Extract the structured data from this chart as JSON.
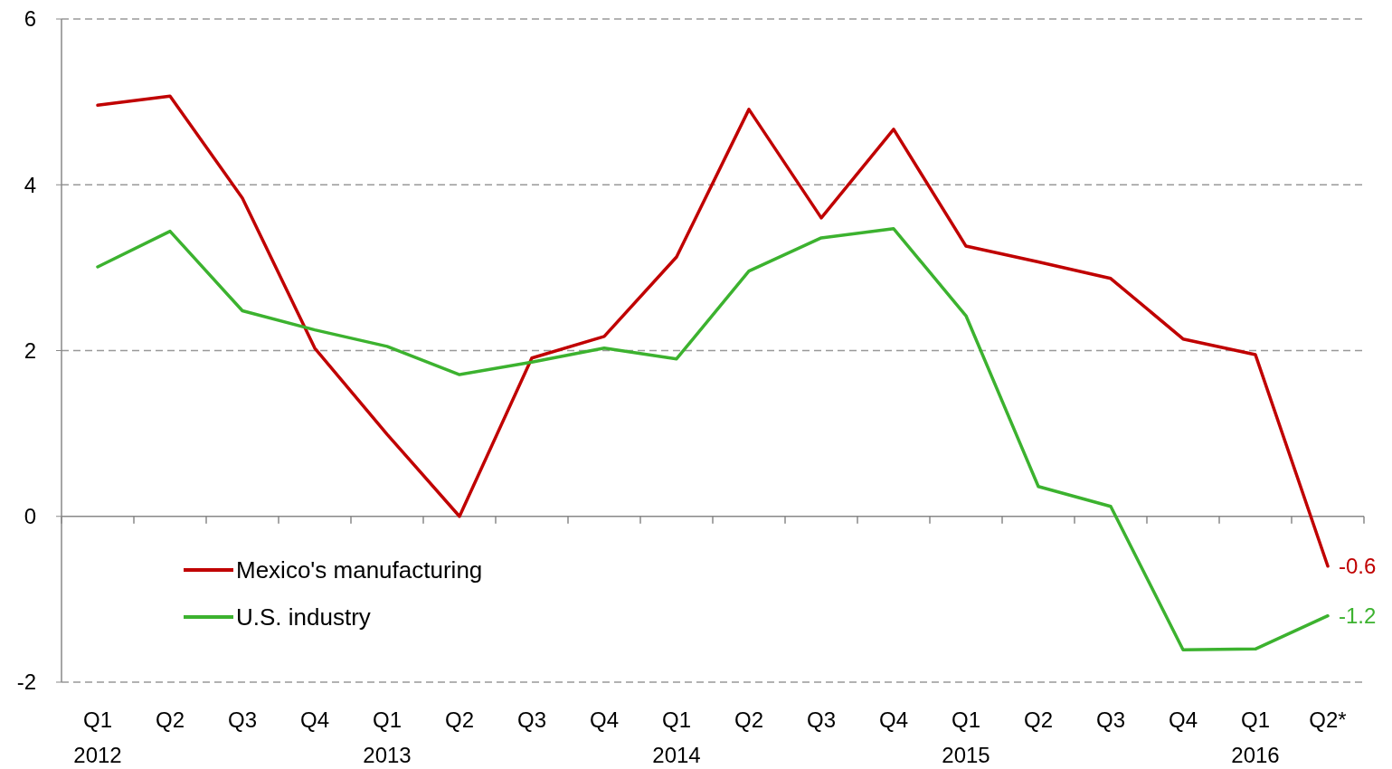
{
  "chart_data": {
    "type": "line",
    "categories": [
      "Q1\n2012",
      "Q2",
      "Q3",
      "Q4",
      "Q1\n2013",
      "Q2",
      "Q3",
      "Q4",
      "Q1\n2014",
      "Q2",
      "Q3",
      "Q4",
      "Q1\n2015",
      "Q2",
      "Q3",
      "Q4",
      "Q1\n2016",
      "Q2*"
    ],
    "series": [
      {
        "name": "Mexico's manufacturing",
        "color": "#c00000",
        "values": [
          4.96,
          5.07,
          3.84,
          2.03,
          0.99,
          0.0,
          1.91,
          2.17,
          3.13,
          4.91,
          3.6,
          4.67,
          3.26,
          3.07,
          2.87,
          2.14,
          1.95,
          -0.6
        ],
        "value_labels": [
          null,
          null,
          null,
          null,
          null,
          null,
          null,
          null,
          null,
          null,
          null,
          null,
          null,
          null,
          null,
          null,
          null,
          "-0.6"
        ]
      },
      {
        "name": "U.S. industry",
        "color": "#3cb22f",
        "values": [
          3.01,
          3.44,
          2.48,
          2.25,
          2.05,
          1.71,
          1.86,
          2.03,
          1.9,
          2.96,
          3.36,
          3.47,
          2.42,
          0.36,
          0.12,
          -1.61,
          -1.6,
          -1.2
        ],
        "value_labels": [
          null,
          null,
          null,
          null,
          null,
          null,
          null,
          null,
          null,
          null,
          null,
          null,
          null,
          null,
          null,
          null,
          null,
          "-1.2"
        ]
      }
    ],
    "ylim": [
      -2,
      6
    ],
    "yticks": [
      -2,
      0,
      2,
      4,
      6
    ],
    "grid": "y",
    "legend": "bottom left",
    "marker": "none",
    "line_style": "solid"
  }
}
